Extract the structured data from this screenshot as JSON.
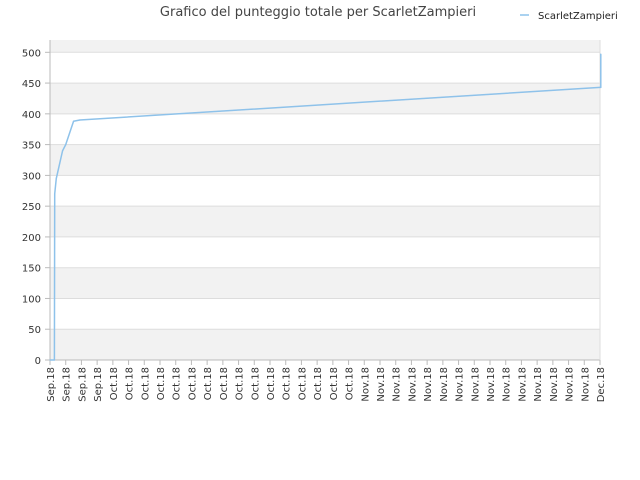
{
  "chart_data": {
    "type": "line",
    "title": "Grafico del punteggio totale per ScarletZampieri",
    "xlabel": "",
    "ylabel": "",
    "ylim": [
      0,
      520
    ],
    "yticks": [
      0,
      50,
      100,
      150,
      200,
      250,
      300,
      350,
      400,
      450,
      500
    ],
    "grid": true,
    "legend_position": "top-right",
    "categories": [
      "Sep.18",
      "Sep.18",
      "Sep.18",
      "Sep.18",
      "Oct.18",
      "Oct.18",
      "Oct.18",
      "Oct.18",
      "Oct.18",
      "Oct.18",
      "Oct.18",
      "Oct.18",
      "Oct.18",
      "Oct.18",
      "Oct.18",
      "Oct.18",
      "Oct.18",
      "Oct.18",
      "Oct.18",
      "Oct.18",
      "Nov.18",
      "Nov.18",
      "Nov.18",
      "Nov.18",
      "Nov.18",
      "Nov.18",
      "Nov.18",
      "Nov.18",
      "Nov.18",
      "Nov.18",
      "Nov.18",
      "Nov.18",
      "Nov.18",
      "Nov.18",
      "Nov.18",
      "Dec.18"
    ],
    "series": [
      {
        "name": "ScarletZampieri",
        "color": "#8ec2ea",
        "x": [
          0,
          0.28,
          0.3,
          0.4,
          0.8,
          1.0,
          1.5,
          1.9,
          35.0,
          35.05,
          35.05
        ],
        "values": [
          0,
          0,
          270,
          295,
          340,
          350,
          388,
          390,
          443,
          443,
          497
        ]
      }
    ],
    "colors": {
      "band": "#f2f2f2",
      "grid": "#dddddd",
      "axis": "#bbbbbb",
      "series": "#8ec2ea"
    }
  }
}
